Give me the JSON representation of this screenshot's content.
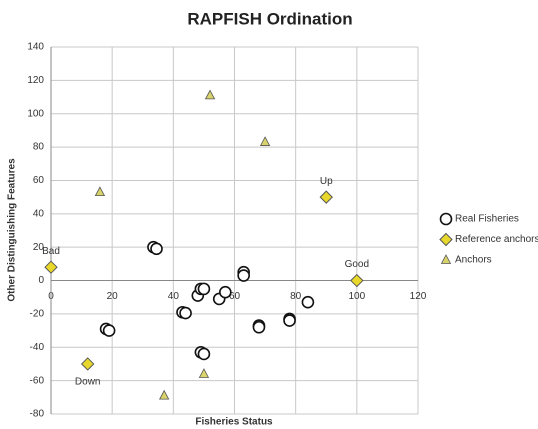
{
  "chart_data": {
    "type": "scatter",
    "title": "RAPFISH Ordination",
    "x_label": "Fisheries Status",
    "y_label": "Other Distinguishing Features",
    "xlim": [
      0,
      120
    ],
    "xticks": [
      0,
      20,
      40,
      60,
      80,
      100,
      120
    ],
    "ylim": [
      -80,
      140
    ],
    "yticks": [
      -80,
      -60,
      -40,
      -20,
      0,
      20,
      40,
      60,
      80,
      100,
      120,
      140
    ],
    "grid": true,
    "legend": "right",
    "series": [
      {
        "name": "Real Fisheries",
        "marker": "circle",
        "color": "#ffffff",
        "x": [
          33.5,
          34.5,
          18,
          19,
          43,
          44,
          48,
          49,
          50,
          49,
          50,
          55,
          57,
          63,
          63,
          68,
          68,
          78,
          78,
          84
        ],
        "y": [
          20,
          19,
          -29,
          -30,
          -19,
          -19.5,
          -9,
          -5,
          -5,
          -43,
          -44,
          -11,
          -7,
          5,
          3,
          -27,
          -28,
          -23,
          -24,
          -13
        ]
      },
      {
        "name": "Reference anchors",
        "marker": "diamond",
        "color": "#e8d82c",
        "x": [
          0,
          100,
          90,
          12
        ],
        "y": [
          8,
          0,
          50,
          -50
        ],
        "labels": [
          "Bad",
          "Good",
          "Up",
          "Down"
        ],
        "label_positions": [
          "above",
          "above",
          "above",
          "below"
        ]
      },
      {
        "name": "Anchors",
        "marker": "triangle",
        "color": "#d8d36a",
        "x": [
          16,
          52,
          70,
          50,
          37
        ],
        "y": [
          53,
          111,
          83,
          -56,
          -69
        ]
      }
    ]
  }
}
